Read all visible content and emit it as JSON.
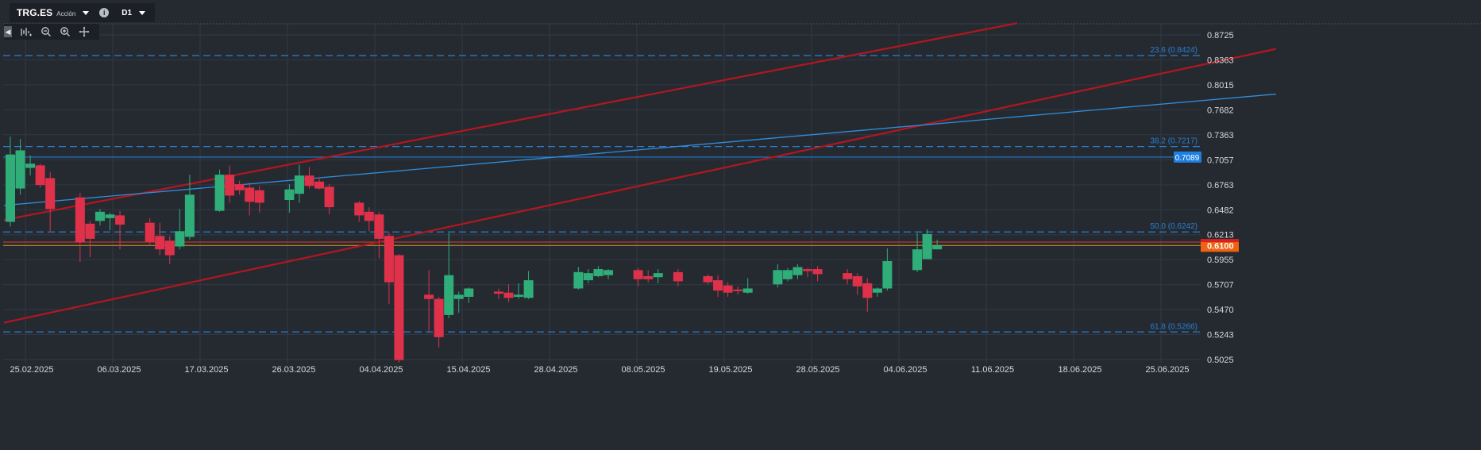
{
  "header": {
    "symbol": "TRG.ES",
    "instrument_type": "Acción",
    "timeframe": "D1",
    "symbol_dropdown_icon": "chevron-down-icon",
    "info_icon": "info-icon",
    "timeframe_dropdown_icon": "chevron-down-icon"
  },
  "tools": [
    "collapse-panel-icon",
    "indicators-icon",
    "zoom-out-icon",
    "zoom-in-icon",
    "crosshair-move-icon"
  ],
  "colors": {
    "background": "#252a31",
    "grid": "#323843",
    "up_candle": "#2fae7a",
    "down_candle": "#e0314a",
    "axis_text": "#d5d8dc",
    "fib_line": "#2a7fd4",
    "channel_line": "#b4161f",
    "trend_line": "#2f8ddc",
    "current_price": "#f0620f",
    "horizontal_level": "#1d7fe0"
  },
  "chart_data": {
    "type": "candlestick",
    "symbol": "TRG.ES",
    "timeframe": "D1",
    "price_axis": {
      "ticks": [
        0.8725,
        0.8363,
        0.8015,
        0.7682,
        0.7363,
        0.7057,
        0.6763,
        0.6482,
        0.6213,
        0.5955,
        0.5707,
        0.547,
        0.5243,
        0.5025
      ],
      "tick_labels": [
        "0.8725",
        "0.8363",
        "0.8015",
        "0.7682",
        "0.7363",
        "0.7057",
        "0.6763",
        "0.6482",
        "0.6213",
        "0.5955",
        "0.5707",
        "0.5470",
        "0.5243",
        "0.5025"
      ],
      "scale": "log",
      "range": [
        0.5,
        0.895
      ]
    },
    "date_axis": {
      "labels": [
        "25.02.2025",
        "06.03.2025",
        "17.03.2025",
        "26.03.2025",
        "04.04.2025",
        "15.04.2025",
        "28.04.2025",
        "08.05.2025",
        "19.05.2025",
        "28.05.2025",
        "04.06.2025",
        "11.06.2025",
        "18.06.2025",
        "25.06.2025"
      ]
    },
    "candles": [
      {
        "date": "2025-02-24",
        "o": 0.635,
        "h": 0.734,
        "l": 0.63,
        "c": 0.712
      },
      {
        "date": "2025-02-25",
        "o": 0.672,
        "h": 0.731,
        "l": 0.665,
        "c": 0.717
      },
      {
        "date": "2025-02-26",
        "o": 0.696,
        "h": 0.711,
        "l": 0.687,
        "c": 0.701
      },
      {
        "date": "2025-02-27",
        "o": 0.699,
        "h": 0.701,
        "l": 0.673,
        "c": 0.676
      },
      {
        "date": "2025-02-28",
        "o": 0.684,
        "h": 0.691,
        "l": 0.625,
        "c": 0.649
      },
      {
        "date": "2025-03-03",
        "o": 0.662,
        "h": 0.667,
        "l": 0.593,
        "c": 0.613
      },
      {
        "date": "2025-03-04",
        "o": 0.633,
        "h": 0.636,
        "l": 0.598,
        "c": 0.617
      },
      {
        "date": "2025-03-05",
        "o": 0.636,
        "h": 0.649,
        "l": 0.631,
        "c": 0.646
      },
      {
        "date": "2025-03-06",
        "o": 0.639,
        "h": 0.645,
        "l": 0.626,
        "c": 0.643
      },
      {
        "date": "2025-03-07",
        "o": 0.642,
        "h": 0.647,
        "l": 0.606,
        "c": 0.632
      },
      {
        "date": "2025-03-10",
        "o": 0.634,
        "h": 0.639,
        "l": 0.61,
        "c": 0.614
      },
      {
        "date": "2025-03-11",
        "o": 0.62,
        "h": 0.634,
        "l": 0.6,
        "c": 0.606
      },
      {
        "date": "2025-03-12",
        "o": 0.615,
        "h": 0.62,
        "l": 0.591,
        "c": 0.6
      },
      {
        "date": "2025-03-13",
        "o": 0.609,
        "h": 0.649,
        "l": 0.606,
        "c": 0.625
      },
      {
        "date": "2025-03-14",
        "o": 0.619,
        "h": 0.688,
        "l": 0.616,
        "c": 0.665
      },
      {
        "date": "2025-03-17",
        "o": 0.647,
        "h": 0.694,
        "l": 0.646,
        "c": 0.688
      },
      {
        "date": "2025-03-18",
        "o": 0.688,
        "h": 0.699,
        "l": 0.656,
        "c": 0.664
      },
      {
        "date": "2025-03-19",
        "o": 0.677,
        "h": 0.681,
        "l": 0.665,
        "c": 0.67
      },
      {
        "date": "2025-03-20",
        "o": 0.673,
        "h": 0.679,
        "l": 0.642,
        "c": 0.657
      },
      {
        "date": "2025-03-21",
        "o": 0.67,
        "h": 0.675,
        "l": 0.645,
        "c": 0.656
      },
      {
        "date": "2025-03-24",
        "o": 0.659,
        "h": 0.677,
        "l": 0.645,
        "c": 0.671
      },
      {
        "date": "2025-03-25",
        "o": 0.666,
        "h": 0.7,
        "l": 0.656,
        "c": 0.687
      },
      {
        "date": "2025-03-26",
        "o": 0.687,
        "h": 0.697,
        "l": 0.672,
        "c": 0.675
      },
      {
        "date": "2025-03-27",
        "o": 0.68,
        "h": 0.685,
        "l": 0.671,
        "c": 0.672
      },
      {
        "date": "2025-03-28",
        "o": 0.674,
        "h": 0.677,
        "l": 0.643,
        "c": 0.651
      },
      {
        "date": "2025-03-31",
        "o": 0.656,
        "h": 0.658,
        "l": 0.635,
        "c": 0.642
      },
      {
        "date": "2025-04-01",
        "o": 0.646,
        "h": 0.651,
        "l": 0.625,
        "c": 0.636
      },
      {
        "date": "2025-04-02",
        "o": 0.643,
        "h": 0.646,
        "l": 0.597,
        "c": 0.617
      },
      {
        "date": "2025-04-03",
        "o": 0.62,
        "h": 0.624,
        "l": 0.552,
        "c": 0.573
      },
      {
        "date": "2025-04-04",
        "o": 0.6,
        "h": 0.601,
        "l": 0.5,
        "c": 0.502
      },
      {
        "date": "2025-04-07",
        "o": 0.561,
        "h": 0.585,
        "l": 0.527,
        "c": 0.557
      },
      {
        "date": "2025-04-08",
        "o": 0.557,
        "h": 0.559,
        "l": 0.513,
        "c": 0.522
      },
      {
        "date": "2025-04-09",
        "o": 0.542,
        "h": 0.623,
        "l": 0.539,
        "c": 0.58
      },
      {
        "date": "2025-04-10",
        "o": 0.557,
        "h": 0.564,
        "l": 0.544,
        "c": 0.561
      },
      {
        "date": "2025-04-11",
        "o": 0.559,
        "h": 0.568,
        "l": 0.553,
        "c": 0.567
      },
      {
        "date": "2025-04-14",
        "o": 0.564,
        "h": 0.567,
        "l": 0.557,
        "c": 0.562
      },
      {
        "date": "2025-04-15",
        "o": 0.563,
        "h": 0.571,
        "l": 0.554,
        "c": 0.558
      },
      {
        "date": "2025-04-16",
        "o": 0.559,
        "h": 0.572,
        "l": 0.557,
        "c": 0.561
      },
      {
        "date": "2025-04-17",
        "o": 0.558,
        "h": 0.584,
        "l": 0.557,
        "c": 0.575
      },
      {
        "date": "2025-04-22",
        "o": 0.567,
        "h": 0.588,
        "l": 0.566,
        "c": 0.583
      },
      {
        "date": "2025-04-23",
        "o": 0.575,
        "h": 0.586,
        "l": 0.572,
        "c": 0.582
      },
      {
        "date": "2025-04-24",
        "o": 0.579,
        "h": 0.589,
        "l": 0.578,
        "c": 0.586
      },
      {
        "date": "2025-04-25",
        "o": 0.58,
        "h": 0.586,
        "l": 0.576,
        "c": 0.585
      },
      {
        "date": "2025-04-28",
        "o": 0.585,
        "h": 0.587,
        "l": 0.569,
        "c": 0.576
      },
      {
        "date": "2025-04-29",
        "o": 0.579,
        "h": 0.585,
        "l": 0.573,
        "c": 0.576
      },
      {
        "date": "2025-04-30",
        "o": 0.578,
        "h": 0.586,
        "l": 0.572,
        "c": 0.582
      },
      {
        "date": "2025-05-02",
        "o": 0.583,
        "h": 0.586,
        "l": 0.569,
        "c": 0.574
      },
      {
        "date": "2025-05-05",
        "o": 0.579,
        "h": 0.581,
        "l": 0.571,
        "c": 0.573
      },
      {
        "date": "2025-05-06",
        "o": 0.575,
        "h": 0.58,
        "l": 0.559,
        "c": 0.565
      },
      {
        "date": "2025-05-07",
        "o": 0.57,
        "h": 0.573,
        "l": 0.559,
        "c": 0.563
      },
      {
        "date": "2025-05-08",
        "o": 0.566,
        "h": 0.569,
        "l": 0.561,
        "c": 0.565
      },
      {
        "date": "2025-05-09",
        "o": 0.563,
        "h": 0.577,
        "l": 0.562,
        "c": 0.567
      },
      {
        "date": "2025-05-12",
        "o": 0.571,
        "h": 0.591,
        "l": 0.568,
        "c": 0.585
      },
      {
        "date": "2025-05-13",
        "o": 0.576,
        "h": 0.587,
        "l": 0.574,
        "c": 0.585
      },
      {
        "date": "2025-05-14",
        "o": 0.58,
        "h": 0.591,
        "l": 0.576,
        "c": 0.588
      },
      {
        "date": "2025-05-15",
        "o": 0.586,
        "h": 0.587,
        "l": 0.578,
        "c": 0.584
      },
      {
        "date": "2025-05-16",
        "o": 0.586,
        "h": 0.589,
        "l": 0.574,
        "c": 0.581
      },
      {
        "date": "2025-05-19",
        "o": 0.582,
        "h": 0.586,
        "l": 0.571,
        "c": 0.576
      },
      {
        "date": "2025-05-20",
        "o": 0.579,
        "h": 0.582,
        "l": 0.561,
        "c": 0.569
      },
      {
        "date": "2025-05-21",
        "o": 0.572,
        "h": 0.577,
        "l": 0.545,
        "c": 0.558
      },
      {
        "date": "2025-05-22",
        "o": 0.563,
        "h": 0.568,
        "l": 0.559,
        "c": 0.567
      },
      {
        "date": "2025-05-23",
        "o": 0.567,
        "h": 0.607,
        "l": 0.565,
        "c": 0.594
      },
      {
        "date": "2025-05-26",
        "o": 0.585,
        "h": 0.623,
        "l": 0.583,
        "c": 0.606
      },
      {
        "date": "2025-05-27",
        "o": 0.596,
        "h": 0.627,
        "l": 0.596,
        "c": 0.622
      },
      {
        "date": "2025-05-28",
        "o": 0.606,
        "h": 0.616,
        "l": 0.606,
        "c": 0.61
      }
    ],
    "horizontal_lines": [
      {
        "price": 0.7089,
        "label": "0.7089",
        "style": "solid"
      },
      {
        "price": 0.61,
        "label": "0.6100",
        "style": "current"
      },
      {
        "price": 0.6135,
        "style": "solid"
      }
    ],
    "fibonacci_levels": [
      {
        "level": "23.6",
        "price": 0.8424,
        "label": "23.6 (0.8424)"
      },
      {
        "level": "38.2",
        "price": 0.7217,
        "label": "38.2 (0.7217)"
      },
      {
        "level": "50.0",
        "price": 0.6242,
        "label": "50.0 (0.6242)"
      },
      {
        "level": "61.8",
        "price": 0.5266,
        "label": "61.8 (0.5266)"
      }
    ],
    "trend_lines": [
      {
        "name": "channel-upper",
        "from": {
          "date": "2025-02-24",
          "price": 0.637
        },
        "to": {
          "date": "2025-06-05",
          "price": 0.89
        }
      },
      {
        "name": "channel-lower",
        "from": {
          "date": "2025-02-24",
          "price": 0.535
        },
        "to": {
          "date": "2025-07-01",
          "price": 0.852
        }
      },
      {
        "name": "trend-line",
        "from": {
          "date": "2025-02-24",
          "price": 0.653
        },
        "to": {
          "date": "2025-07-01",
          "price": 0.789
        }
      }
    ]
  }
}
